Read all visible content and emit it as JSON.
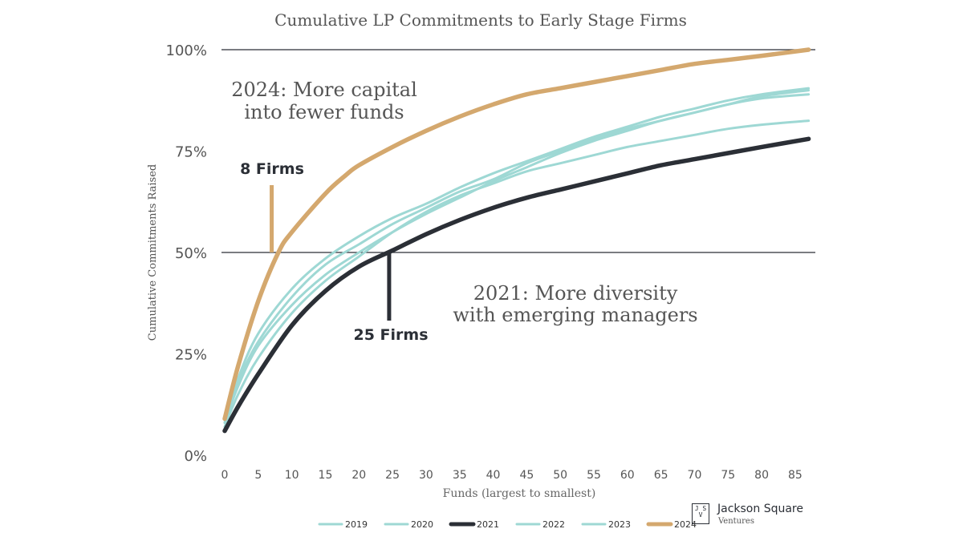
{
  "chart_data": {
    "type": "line",
    "title": "Cumulative LP Commitments to Early Stage Firms",
    "xlabel": "Funds (largest to smallest)",
    "ylabel": "Cumulative Commitments Raised",
    "xlim": [
      0,
      88
    ],
    "ylim": [
      0,
      100
    ],
    "x_ticks": [
      0,
      5,
      10,
      15,
      20,
      25,
      30,
      35,
      40,
      45,
      50,
      55,
      60,
      65,
      70,
      75,
      80,
      85
    ],
    "x_tick_labels": [
      "0",
      "5",
      "10",
      "15",
      "20",
      "25",
      "30",
      "35",
      "40",
      "45",
      "50",
      "55",
      "60",
      "65",
      "70",
      "75",
      "80",
      "85"
    ],
    "y_ticks": [
      0,
      25,
      50,
      75,
      100
    ],
    "y_tick_labels": [
      "0%",
      "25%",
      "50%",
      "75%",
      "100%"
    ],
    "gridlines_y": [
      50,
      100
    ],
    "series": [
      {
        "name": "2019",
        "color": "#9ed8d4",
        "x": [
          0,
          2,
          5,
          10,
          15,
          20,
          25,
          30,
          35,
          40,
          45,
          50,
          55,
          60,
          65,
          70,
          75,
          80,
          87
        ],
        "y": [
          7,
          15,
          24,
          35,
          43,
          49,
          55,
          60,
          64,
          67,
          70,
          72,
          74,
          76,
          77.5,
          79,
          80.5,
          81.5,
          82.5
        ]
      },
      {
        "name": "2020",
        "color": "#9ed8d4",
        "x": [
          0,
          2,
          5,
          10,
          15,
          20,
          25,
          30,
          35,
          40,
          45,
          50,
          55,
          60,
          65,
          70,
          75,
          80,
          87
        ],
        "y": [
          8,
          18,
          28,
          39,
          47,
          52,
          57,
          61,
          65,
          68,
          72,
          75,
          78,
          80.5,
          82.5,
          84.5,
          86.5,
          88,
          89
        ]
      },
      {
        "name": "2021",
        "color": "#2b2f36",
        "x": [
          0,
          2,
          5,
          10,
          15,
          20,
          25,
          30,
          35,
          40,
          45,
          50,
          55,
          60,
          65,
          70,
          75,
          80,
          87
        ],
        "y": [
          6,
          12,
          20,
          32,
          40.5,
          46.5,
          50.5,
          54.5,
          58,
          61,
          63.5,
          65.5,
          67.5,
          69.5,
          71.5,
          73,
          74.5,
          76,
          78
        ]
      },
      {
        "name": "2022",
        "color": "#9ed8d4",
        "x": [
          0,
          2,
          5,
          10,
          15,
          20,
          25,
          30,
          35,
          40,
          45,
          50,
          55,
          60,
          65,
          70,
          75,
          80,
          87
        ],
        "y": [
          8,
          19,
          30,
          41,
          48.5,
          54,
          58.5,
          62,
          66,
          69.5,
          72.5,
          75.5,
          78.5,
          81,
          83.5,
          85.5,
          87.5,
          89,
          90.5
        ]
      },
      {
        "name": "2023",
        "color": "#9ed8d4",
        "x": [
          0,
          2,
          5,
          10,
          15,
          20,
          25,
          30,
          35,
          40,
          45,
          50,
          55,
          60,
          65,
          70,
          75,
          80,
          87
        ],
        "y": [
          8,
          17,
          27,
          37,
          44.5,
          50,
          55,
          59.5,
          63.5,
          67.5,
          71,
          74.5,
          77.5,
          80,
          82.5,
          84.5,
          86.5,
          88.5,
          90
        ]
      },
      {
        "name": "2024",
        "color": "#d4a86e",
        "x": [
          0,
          2,
          5,
          8,
          10,
          15,
          18,
          20,
          25,
          30,
          35,
          40,
          45,
          50,
          55,
          60,
          65,
          70,
          75,
          80,
          87
        ],
        "y": [
          9,
          22,
          38,
          50,
          55,
          64.5,
          69,
          71.5,
          76,
          80,
          83.5,
          86.5,
          89,
          90.5,
          92,
          93.5,
          95,
          96.5,
          97.5,
          98.5,
          100
        ]
      }
    ],
    "annotations": [
      {
        "text": "2024: More capital",
        "text2": "into fewer funds"
      },
      {
        "text": "8 Firms"
      },
      {
        "text": "2021: More diversity",
        "text2": "with emerging managers"
      },
      {
        "text": "25 Firms"
      }
    ],
    "legend": {
      "position": "bottom-center",
      "entries": [
        "2019",
        "2020",
        "2021",
        "2022",
        "2023",
        "2024"
      ]
    }
  },
  "logo": {
    "mark": "J S V",
    "name": "Jackson Square",
    "sub": "Ventures"
  }
}
